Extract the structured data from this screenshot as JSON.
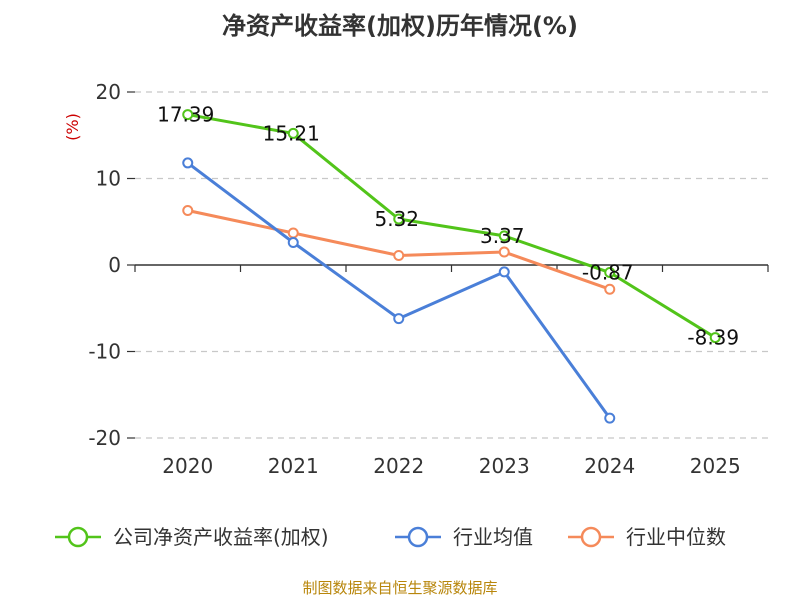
{
  "chart_data": {
    "type": "line",
    "title": "净资产收益率(加权)历年情况(%)",
    "ylabel": "(%)",
    "xlabel": "",
    "categories": [
      "2020",
      "2021",
      "2022",
      "2023",
      "2024",
      "2025"
    ],
    "ylim": [
      -20,
      20
    ],
    "yticks": [
      20,
      10,
      0,
      -10,
      -20
    ],
    "ytick_labels": [
      "20",
      "10",
      "0",
      "-10",
      "-20"
    ],
    "grid": true,
    "legend_position": "bottom",
    "series": [
      {
        "name": "公司净资产收益率(加权)",
        "color": "#52c41a",
        "values": [
          17.39,
          15.21,
          5.32,
          3.37,
          -0.87,
          -8.39
        ],
        "labels": [
          "17.39",
          "15.21",
          "5.32",
          "3.37",
          "-0.87",
          "-8.39"
        ]
      },
      {
        "name": "行业均值",
        "color": "#4a7fd8",
        "values": [
          11.8,
          2.6,
          -6.2,
          -0.8,
          -17.7,
          null
        ]
      },
      {
        "name": "行业中位数",
        "color": "#f58a5a",
        "values": [
          6.3,
          3.7,
          1.1,
          1.5,
          -2.8,
          null
        ]
      }
    ]
  },
  "source": "制图数据来自恒生聚源数据库"
}
